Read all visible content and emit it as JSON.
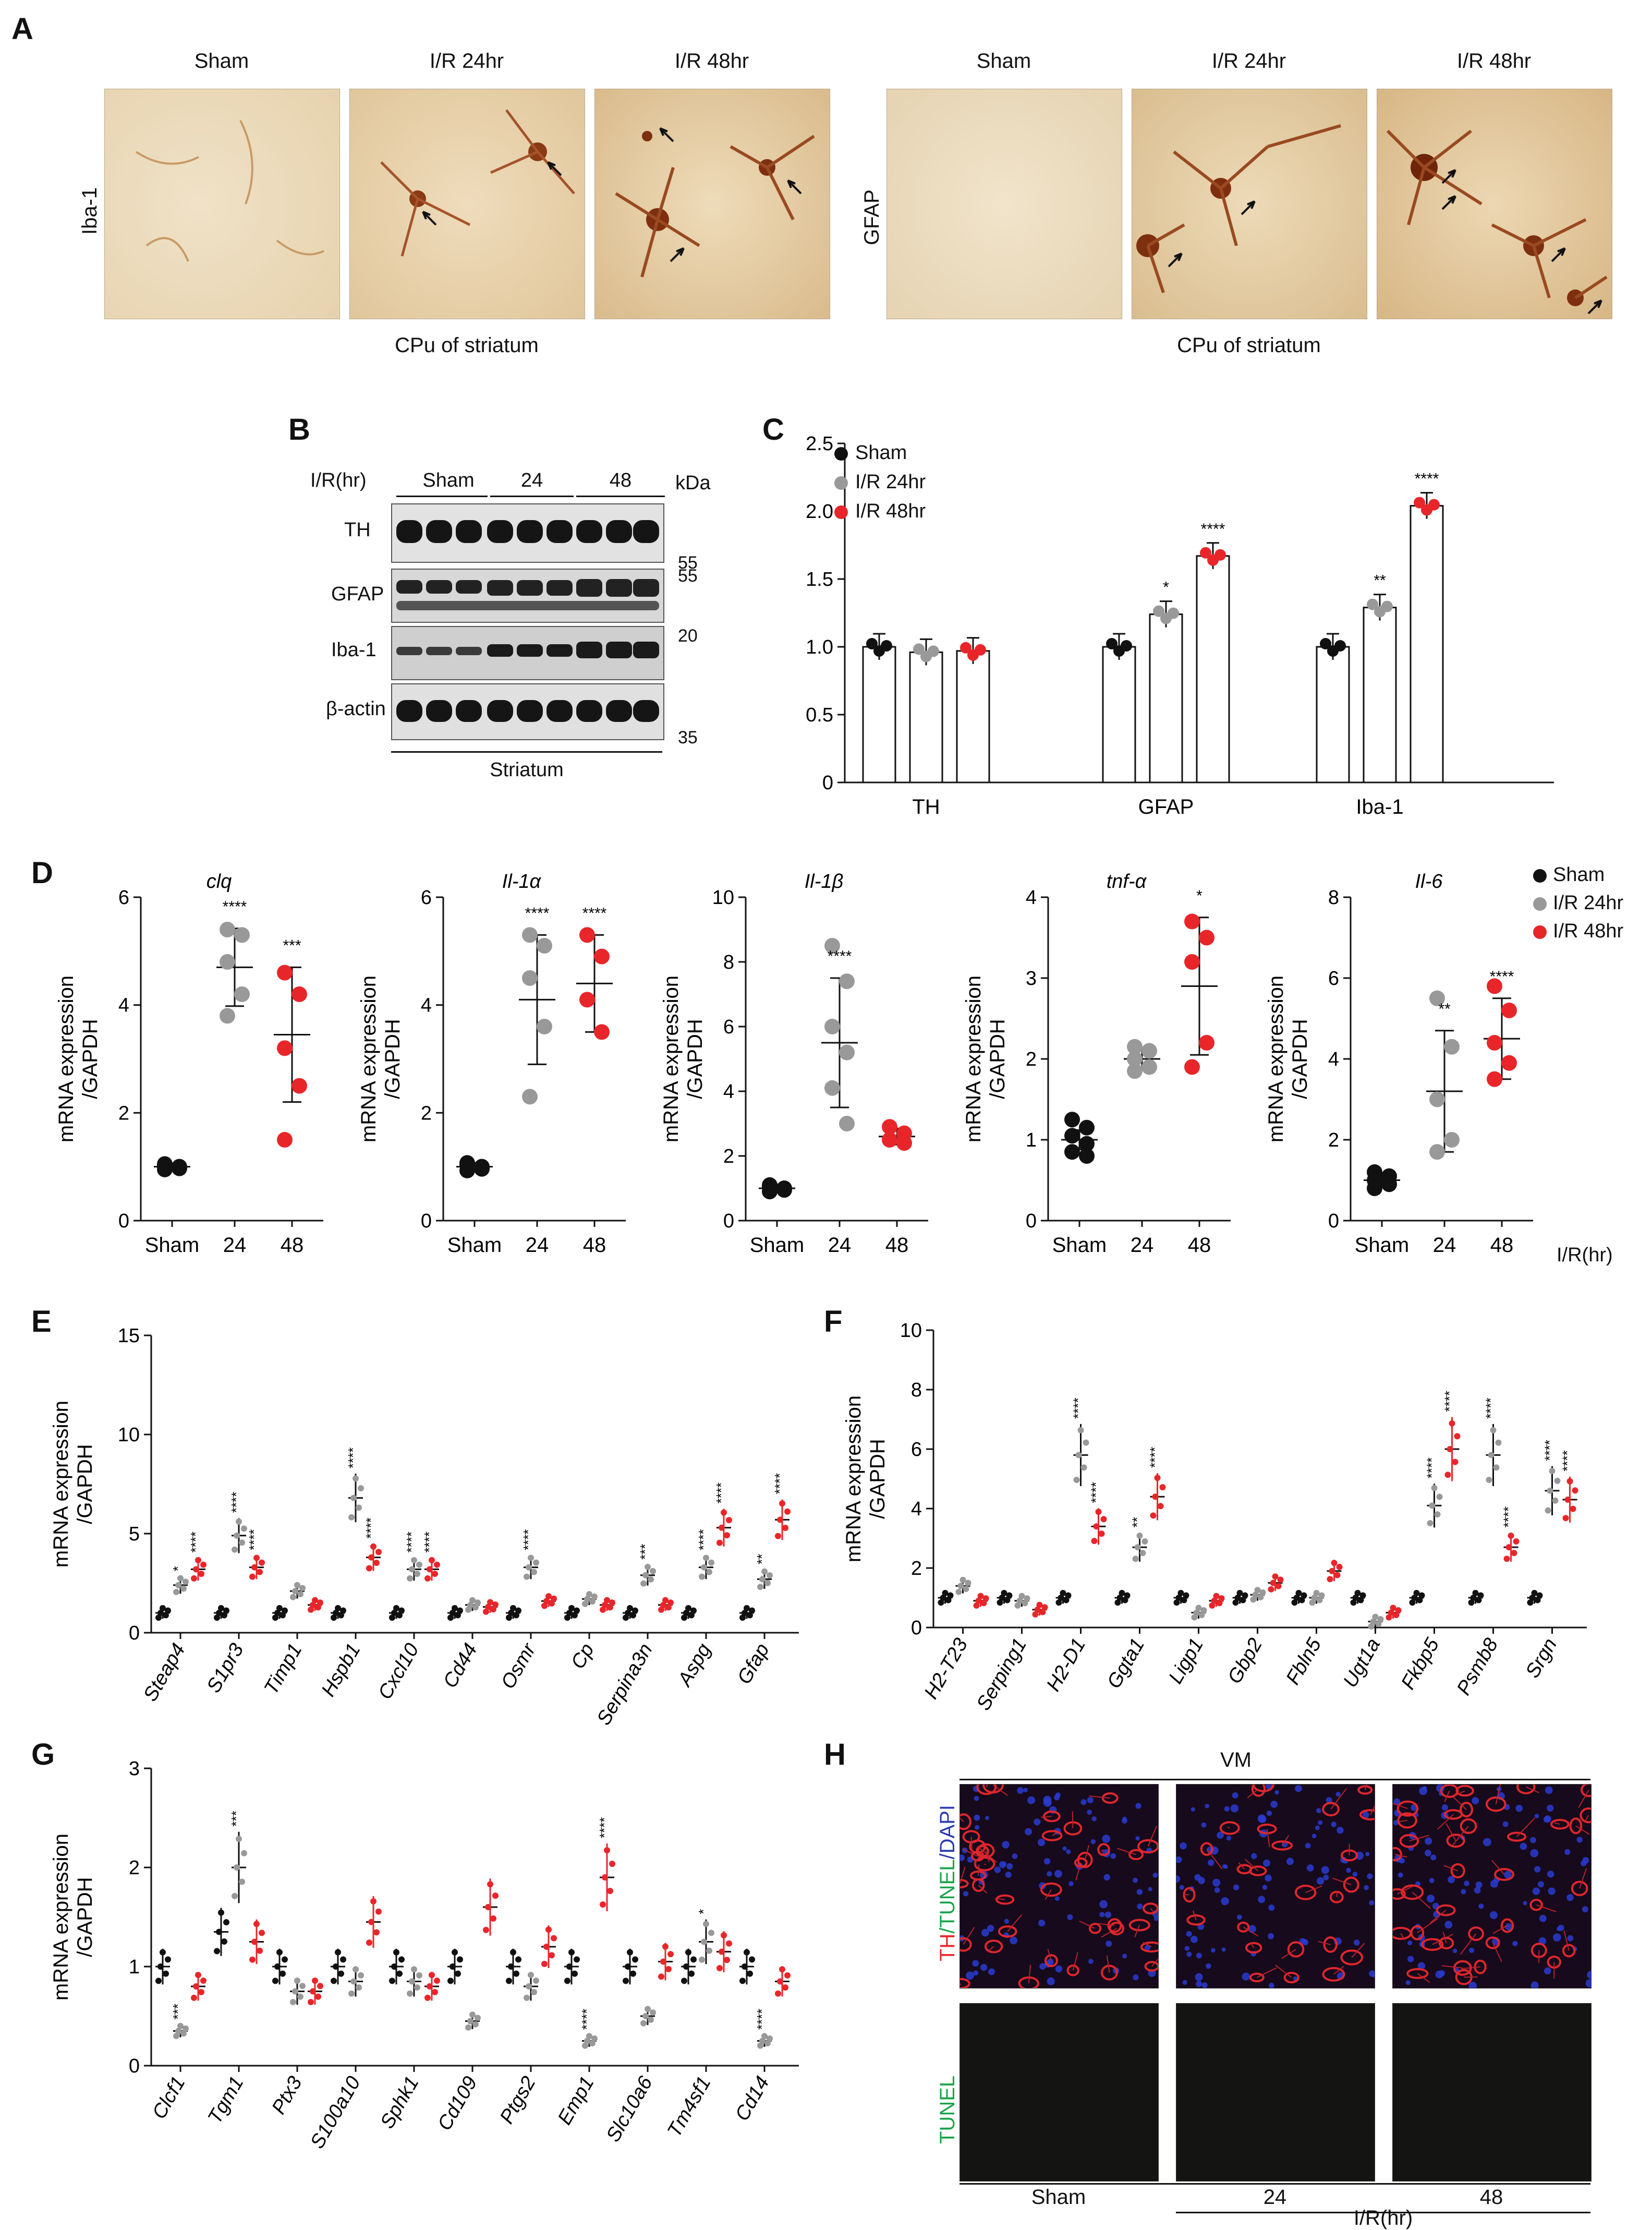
{
  "colors": {
    "sham": "#111111",
    "ir24": "#999999",
    "ir48": "#e8262a",
    "brown": "#8a3a14"
  },
  "panels": {
    "A": "A",
    "B": "B",
    "C": "C",
    "D": "D",
    "E": "E",
    "F": "F",
    "G": "G",
    "H": "H"
  },
  "panelA": {
    "left": {
      "markers": "Iba-1",
      "titles": [
        "Sham",
        "I/R 24hr",
        "I/R 48hr"
      ],
      "caption": "CPu of striatum"
    },
    "right": {
      "markers": "GFAP",
      "titles": [
        "Sham",
        "I/R 24hr",
        "I/R 48hr"
      ],
      "caption": "CPu of striatum"
    }
  },
  "panelB": {
    "header": "I/R(hr)",
    "groups": [
      "Sham",
      "24",
      "48"
    ],
    "kda": "kDa",
    "rows": [
      {
        "name": "TH",
        "marker": "55"
      },
      {
        "name": "GFAP",
        "marker": "55"
      },
      {
        "name": "Iba-1",
        "marker": "20"
      },
      {
        "name": "β-actin",
        "marker": "35"
      }
    ],
    "footer": "Striatum"
  },
  "legend": {
    "sham": "Sham",
    "ir24": "I/R 24hr",
    "ir48": "I/R 48hr"
  },
  "chart_data": [
    {
      "id": "C",
      "type": "bar",
      "categories": [
        "TH",
        "GFAP",
        "Iba-1"
      ],
      "series": [
        {
          "name": "Sham",
          "values": [
            1.0,
            1.0,
            1.0
          ]
        },
        {
          "name": "I/R 24hr",
          "values": [
            0.96,
            1.24,
            1.29
          ]
        },
        {
          "name": "I/R 48hr",
          "values": [
            0.97,
            1.67,
            2.04
          ]
        }
      ],
      "sig": [
        [
          "",
          "",
          ""
        ],
        [
          "",
          "*",
          "**"
        ],
        [
          "",
          "****",
          "****"
        ]
      ],
      "ylim": [
        0,
        2.5
      ],
      "yticks": [
        "0",
        "0.5",
        "1.0",
        "1.5",
        "2.0",
        "2.5"
      ]
    },
    {
      "id": "D1",
      "type": "scatter",
      "title": "clq",
      "ylabel": "mRNA expression\n/GAPDH",
      "xcats": [
        "Sham",
        "24",
        "48"
      ],
      "ylim": [
        0,
        6
      ],
      "yticks": [
        "0",
        "2",
        "4",
        "6"
      ],
      "groups": [
        {
          "mean": 1.0,
          "sd": 0.06,
          "pts": [
            0.95,
            1.0,
            1.05,
            0.97,
            1.02
          ],
          "sig": ""
        },
        {
          "mean": 4.7,
          "sd": 0.72,
          "pts": [
            5.4,
            5.3,
            4.8,
            4.2,
            3.8
          ],
          "sig": "****"
        },
        {
          "mean": 3.45,
          "sd": 1.25,
          "pts": [
            4.6,
            4.2,
            3.2,
            2.5,
            1.5
          ],
          "sig": "***"
        }
      ]
    },
    {
      "id": "D2",
      "type": "scatter",
      "title": "Il-1α",
      "ylabel": "mRNA expression\n/GAPDH",
      "xcats": [
        "Sham",
        "24",
        "48"
      ],
      "ylim": [
        0,
        6
      ],
      "yticks": [
        "0",
        "2",
        "4",
        "6"
      ],
      "groups": [
        {
          "mean": 1.0,
          "sd": 0.07,
          "pts": [
            0.93,
            1.0,
            1.07,
            0.96,
            1.04
          ],
          "sig": ""
        },
        {
          "mean": 4.1,
          "sd": 1.2,
          "pts": [
            5.3,
            5.1,
            4.5,
            3.6,
            2.3
          ],
          "sig": "****"
        },
        {
          "mean": 4.4,
          "sd": 0.9,
          "pts": [
            5.3,
            4.9,
            4.1,
            3.5
          ],
          "sig": "****"
        }
      ]
    },
    {
      "id": "D3",
      "type": "scatter",
      "title": "Il-1β",
      "ylabel": "mRNA expression\n/GAPDH",
      "xcats": [
        "Sham",
        "24",
        "48"
      ],
      "ylim": [
        0,
        10
      ],
      "yticks": [
        "0",
        "2",
        "4",
        "6",
        "8",
        "10"
      ],
      "groups": [
        {
          "mean": 1.0,
          "sd": 0.12,
          "pts": [
            0.9,
            1.0,
            1.1,
            0.95,
            1.05
          ],
          "sig": ""
        },
        {
          "mean": 5.5,
          "sd": 2.0,
          "pts": [
            8.5,
            7.4,
            6.0,
            5.2,
            4.1,
            3.0
          ],
          "sig": "****"
        },
        {
          "mean": 2.6,
          "sd": 0.25,
          "pts": [
            2.9,
            2.7,
            2.5,
            2.4
          ],
          "sig": ""
        }
      ]
    },
    {
      "id": "D4",
      "type": "scatter",
      "title": "tnf-α",
      "ylabel": "mRNA expression\n/GAPDH",
      "xcats": [
        "Sham",
        "24",
        "48"
      ],
      "ylim": [
        0,
        4
      ],
      "yticks": [
        "0",
        "1",
        "2",
        "3",
        "4"
      ],
      "groups": [
        {
          "mean": 1.0,
          "sd": 0.12,
          "pts": [
            1.25,
            1.15,
            1.05,
            0.95,
            0.85,
            0.8
          ],
          "sig": ""
        },
        {
          "mean": 2.0,
          "sd": 0.12,
          "pts": [
            2.15,
            2.1,
            2.0,
            1.9,
            1.85
          ],
          "sig": ""
        },
        {
          "mean": 2.9,
          "sd": 0.85,
          "pts": [
            3.7,
            3.5,
            3.2,
            2.2,
            1.9
          ],
          "sig": "*"
        }
      ]
    },
    {
      "id": "D5",
      "type": "scatter",
      "title": "Il-6",
      "ylabel": "mRNA expression\n/GAPDH",
      "xcats": [
        "Sham",
        "24",
        "48"
      ],
      "ylim": [
        0,
        8
      ],
      "yticks": [
        "0",
        "2",
        "4",
        "6",
        "8"
      ],
      "groups": [
        {
          "mean": 1.0,
          "sd": 0.15,
          "pts": [
            1.2,
            1.1,
            1.0,
            0.9,
            0.8
          ],
          "sig": ""
        },
        {
          "mean": 3.2,
          "sd": 1.5,
          "pts": [
            5.5,
            4.3,
            3.0,
            2.0,
            1.7
          ],
          "sig": "**"
        },
        {
          "mean": 4.5,
          "sd": 1.0,
          "pts": [
            5.8,
            5.2,
            4.4,
            3.9,
            3.5
          ],
          "sig": "****"
        }
      ]
    },
    {
      "id": "E",
      "type": "scatter-grouped",
      "ylabel": "mRNA expression\n/GAPDH",
      "ylim": [
        0,
        15
      ],
      "yticks": [
        "0",
        "5",
        "10",
        "15"
      ],
      "genes": [
        "Steap4",
        "S1pr3",
        "Timp1",
        "Hspb1",
        "Cxcl10",
        "Cd44",
        "Osmr",
        "Cp",
        "Serpina3n",
        "Aspg",
        "Gfap"
      ],
      "means": [
        [
          1.0,
          2.4,
          3.2
        ],
        [
          1.0,
          4.9,
          3.3
        ],
        [
          1.0,
          2.1,
          1.4
        ],
        [
          1.0,
          6.8,
          3.8
        ],
        [
          1.0,
          3.2,
          3.2
        ],
        [
          1.0,
          1.4,
          1.3
        ],
        [
          1.0,
          3.3,
          1.6
        ],
        [
          1.0,
          1.7,
          1.4
        ],
        [
          1.0,
          2.9,
          1.4
        ],
        [
          1.0,
          3.3,
          5.3
        ],
        [
          1.0,
          2.7,
          5.7
        ]
      ],
      "sig": [
        [
          "",
          "*",
          "****"
        ],
        [
          "",
          "****",
          "****"
        ],
        [
          "",
          "",
          ""
        ],
        [
          "",
          "****",
          "****"
        ],
        [
          "",
          "****",
          "****"
        ],
        [
          "",
          "",
          ""
        ],
        [
          "",
          "****",
          ""
        ],
        [
          "",
          "",
          ""
        ],
        [
          "",
          "***",
          ""
        ],
        [
          "",
          "****",
          "****"
        ],
        [
          "",
          "**",
          "****"
        ]
      ]
    },
    {
      "id": "F",
      "type": "scatter-grouped",
      "ylabel": "mRNA expression\n/GAPDH",
      "ylim": [
        0,
        10
      ],
      "yticks": [
        "0",
        "2",
        "4",
        "6",
        "8",
        "10"
      ],
      "genes": [
        "H2-T23",
        "Serping1",
        "H2-D1",
        "Ggta1",
        "Ligp1",
        "Gbp2",
        "Fbln5",
        "Ugt1a",
        "Fkbp5",
        "Psmb8",
        "Srgn"
      ],
      "means": [
        [
          1.0,
          1.4,
          0.9
        ],
        [
          1.0,
          0.9,
          0.6
        ],
        [
          1.0,
          5.8,
          3.4
        ],
        [
          1.0,
          2.7,
          4.4
        ],
        [
          1.0,
          0.5,
          0.9
        ],
        [
          1.0,
          1.1,
          1.5
        ],
        [
          1.0,
          1.0,
          1.9
        ],
        [
          1.0,
          0.2,
          0.5
        ],
        [
          1.0,
          4.1,
          6.0
        ],
        [
          1.0,
          5.8,
          2.7
        ],
        [
          1.0,
          4.6,
          4.3
        ]
      ],
      "sig": [
        [
          "",
          "",
          ""
        ],
        [
          "",
          "",
          ""
        ],
        [
          "",
          "****",
          "****"
        ],
        [
          "",
          "**",
          "****"
        ],
        [
          "",
          "",
          ""
        ],
        [
          "",
          "",
          ""
        ],
        [
          "",
          "",
          ""
        ],
        [
          "",
          "",
          ""
        ],
        [
          "",
          "****",
          "****"
        ],
        [
          "",
          "****",
          "****"
        ],
        [
          "",
          "****",
          "****"
        ]
      ]
    },
    {
      "id": "G",
      "type": "scatter-grouped",
      "ylabel": "mRNA expression\n/GAPDH",
      "ylim": [
        0,
        3
      ],
      "yticks": [
        "0",
        "1",
        "2",
        "3"
      ],
      "genes": [
        "Clcf1",
        "Tgm1",
        "Ptx3",
        "S100a10",
        "Sphk1",
        "Cd109",
        "Ptgs2",
        "Emp1",
        "Slc10a6",
        "Tm4sf1",
        "Cd14"
      ],
      "means": [
        [
          1.0,
          0.35,
          0.8
        ],
        [
          1.35,
          2.0,
          1.25
        ],
        [
          1.0,
          0.75,
          0.75
        ],
        [
          1.0,
          0.85,
          1.45
        ],
        [
          1.0,
          0.85,
          0.8
        ],
        [
          1.0,
          0.45,
          1.6
        ],
        [
          1.0,
          0.8,
          1.2
        ],
        [
          1.0,
          0.25,
          1.9
        ],
        [
          1.0,
          0.5,
          1.05
        ],
        [
          1.0,
          1.25,
          1.15
        ],
        [
          1.0,
          0.25,
          0.85
        ]
      ],
      "sig": [
        [
          "",
          "***",
          ""
        ],
        [
          "",
          "***",
          ""
        ],
        [
          "",
          "",
          ""
        ],
        [
          "",
          "",
          ""
        ],
        [
          "",
          "",
          ""
        ],
        [
          "",
          "",
          ""
        ],
        [
          "",
          "",
          ""
        ],
        [
          "",
          "****",
          "****"
        ],
        [
          "",
          "",
          ""
        ],
        [
          "",
          "*",
          ""
        ],
        [
          "",
          "****",
          ""
        ]
      ]
    }
  ],
  "xaxisD": "I/R(hr)",
  "panelH": {
    "top": "VM",
    "rowlabels": {
      "a": "TH",
      "b": "/TUNEL",
      "c": "/DAPI",
      "d": "TUNEL"
    },
    "cols": [
      "Sham",
      "24",
      "48"
    ],
    "footer": "I/R(hr)"
  }
}
